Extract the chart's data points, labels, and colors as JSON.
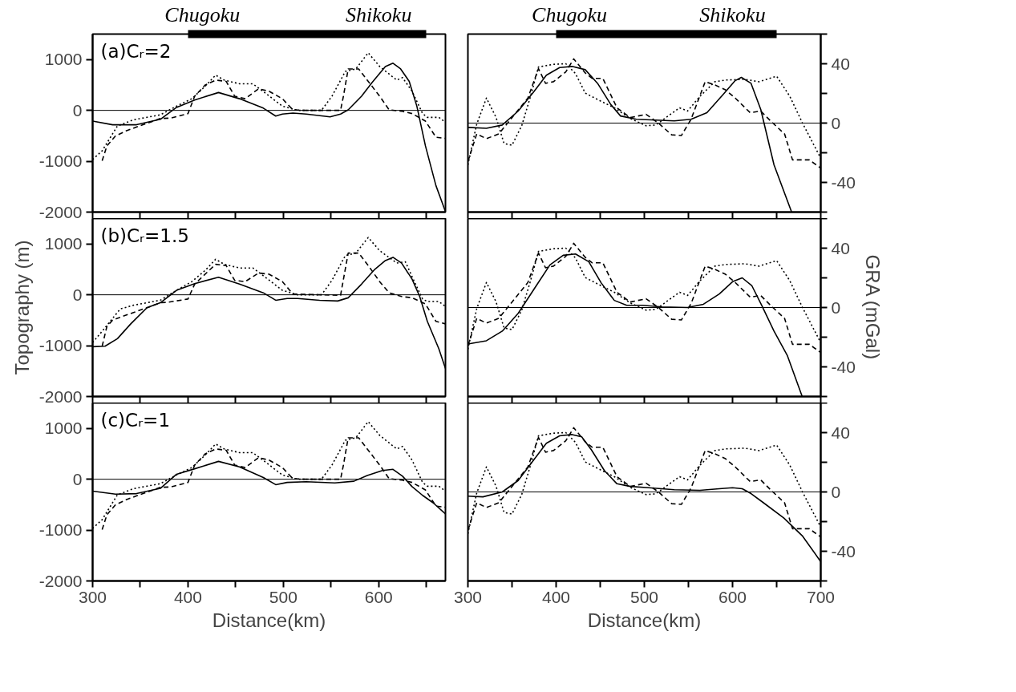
{
  "chart_data": [
    {
      "type": "line",
      "title": "(a)Cᵣ=2",
      "xlim": [
        300,
        670
      ],
      "ylim": [
        -2000,
        1500
      ],
      "xticks": [
        300,
        {
          "value": 350,
          "label": null
        },
        400,
        {
          "value": 450,
          "label": null
        },
        500,
        {
          "value": 550,
          "label": null
        },
        600,
        {
          "value": 650,
          "label": null
        }
      ],
      "yticks": [
        -2000,
        -1000,
        0,
        1000
      ],
      "tick_labels": "y",
      "grid": false,
      "ref_lines": [
        {
          "axis": "y",
          "value": 0,
          "color": "#000000"
        }
      ],
      "annotations": [
        "Chugoku",
        "Shikoku"
      ],
      "series": [
        {
          "color": "#000000",
          "line_style": "solid",
          "x": [
            300,
            321,
            346,
            371,
            388,
            407,
            432,
            454,
            479,
            492,
            499,
            510,
            524,
            549,
            560,
            568,
            582,
            593,
            607,
            615,
            623,
            632,
            640,
            649,
            660,
            670
          ],
          "values": [
            -210,
            -283,
            -283,
            -176,
            59,
            205,
            351,
            229,
            44,
            -112,
            -73,
            -54,
            -73,
            -127,
            -73,
            10,
            278,
            546,
            863,
            927,
            815,
            571,
            83,
            -698,
            -1478,
            -1990
          ]
        },
        {
          "color": "#000000",
          "line_style": "dashed",
          "x": [
            310,
            315,
            324,
            335,
            349,
            371,
            382,
            400,
            407,
            418,
            429,
            440,
            449,
            460,
            474,
            485,
            499,
            510,
            524,
            560,
            563,
            568,
            579,
            590,
            601,
            611,
            624,
            635,
            649,
            660,
            670
          ],
          "values": [
            -990,
            -698,
            -502,
            -405,
            -307,
            -161,
            -151,
            -63,
            278,
            498,
            595,
            571,
            278,
            229,
            424,
            376,
            229,
            10,
            0,
            0,
            278,
            815,
            815,
            546,
            278,
            10,
            -15,
            -63,
            -210,
            -527,
            -551
          ]
        },
        {
          "color": "#000000",
          "line_style": "dotted",
          "x": [
            300,
            310,
            326,
            343,
            371,
            388,
            404,
            418,
            429,
            438,
            454,
            468,
            482,
            499,
            515,
            540,
            551,
            565,
            576,
            589,
            601,
            619,
            625,
            635,
            646,
            651,
            663,
            670
          ],
          "values": [
            -966,
            -795,
            -307,
            -185,
            -88,
            83,
            229,
            473,
            693,
            595,
            522,
            522,
            327,
            83,
            0,
            0,
            278,
            766,
            815,
            1132,
            863,
            595,
            644,
            376,
            -63,
            -137,
            -137,
            -234
          ]
        }
      ]
    },
    {
      "type": "line",
      "xlim": [
        300,
        700
      ],
      "y2lim": [
        -60,
        60
      ],
      "xticks": [
        300,
        {
          "value": 350,
          "label": null
        },
        400,
        {
          "value": 450,
          "label": null
        },
        500,
        {
          "value": 550,
          "label": null
        },
        600,
        {
          "value": 650,
          "label": null
        },
        700
      ],
      "y2ticks": [
        {
          "value": -60,
          "label": null
        },
        -40,
        {
          "value": -20,
          "label": null
        },
        0,
        {
          "value": 20,
          "label": null
        },
        40,
        {
          "value": 60,
          "label": null
        }
      ],
      "tick_labels": "y",
      "grid": false,
      "ref_lines": [
        {
          "axis": "y2",
          "value": 0,
          "color": "#000000"
        }
      ],
      "annotations": [
        "Chugoku",
        "Shikoku"
      ],
      "series": [
        {
          "axis": "y2",
          "color": "#000000",
          "line_style": "solid",
          "x": [
            300,
            321,
            339,
            357,
            375,
            389,
            404,
            418,
            433,
            447,
            462,
            473,
            491,
            513,
            534,
            553,
            571,
            589,
            603,
            610,
            621,
            632,
            647,
            667
          ],
          "values": [
            -2.9,
            -3.5,
            -1.3,
            8.1,
            21.3,
            32.3,
            37.4,
            38.2,
            36.0,
            26.8,
            12.5,
            4.8,
            2.6,
            2.0,
            1.5,
            2.6,
            7.0,
            19.1,
            28.6,
            30.8,
            26.8,
            9.2,
            -28.1,
            -60
          ]
        },
        {
          "axis": "y2",
          "color": "#000000",
          "line_style": "dashed",
          "x": [
            300,
            310,
            321,
            335,
            350,
            368,
            380,
            388,
            397,
            411,
            420,
            433,
            441,
            453,
            469,
            484,
            502,
            516,
            531,
            542,
            553,
            569,
            580,
            592,
            603,
            620,
            632,
            643,
            659,
            668,
            687,
            700
          ],
          "values": [
            -25.9,
            -7.3,
            -10.5,
            -7.3,
            3.7,
            16.9,
            36.7,
            26.8,
            27.9,
            34.5,
            43.3,
            33.8,
            30.1,
            30.1,
            10.3,
            3.7,
            5.9,
            0,
            -7.9,
            -8.4,
            2.6,
            27.9,
            25.7,
            22.4,
            16.9,
            7.0,
            8.1,
            1.5,
            -7.3,
            -24.8,
            -24.8,
            -30.3
          ]
        },
        {
          "axis": "y2",
          "color": "#000000",
          "line_style": "dotted",
          "x": [
            300,
            310,
            321,
            332,
            341,
            350,
            361,
            371,
            380,
            397,
            411,
            422,
            433,
            451,
            466,
            484,
            502,
            513,
            527,
            540,
            549,
            563,
            580,
            592,
            614,
            630,
            650,
            665,
            679,
            700
          ],
          "values": [
            -28.1,
            -0.7,
            16.9,
            3.7,
            -13.8,
            -14.9,
            -1.8,
            18.0,
            37.8,
            39.6,
            40.0,
            33.4,
            20.2,
            14.7,
            10.3,
            3.1,
            -1.8,
            -1.3,
            4.8,
            10.3,
            8.1,
            18.0,
            27.9,
            29.0,
            29.5,
            27.9,
            31.6,
            18.0,
            0.4,
            -23.7
          ]
        }
      ]
    },
    {
      "type": "line",
      "title": "(b)Cᵣ=1.5",
      "ylabel": "Topography (m)",
      "xlim": [
        300,
        670
      ],
      "ylim": [
        -2000,
        1500
      ],
      "xticks": [
        300,
        {
          "value": 350,
          "label": null
        },
        400,
        {
          "value": 450,
          "label": null
        },
        500,
        {
          "value": 550,
          "label": null
        },
        600,
        {
          "value": 650,
          "label": null
        }
      ],
      "yticks": [
        -2000,
        -1000,
        0,
        1000
      ],
      "tick_labels": "y",
      "grid": false,
      "ref_lines": [
        {
          "axis": "y",
          "value": 0,
          "color": "#000000"
        }
      ],
      "series": [
        {
          "color": "#000000",
          "line_style": "solid",
          "x": [
            300,
            313,
            326,
            340,
            357,
            371,
            388,
            407,
            432,
            454,
            479,
            492,
            504,
            515,
            538,
            557,
            568,
            582,
            596,
            607,
            615,
            624,
            635,
            643,
            651,
            663,
            670
          ],
          "values": [
            -1020,
            -1010,
            -863,
            -571,
            -254,
            -156,
            88,
            220,
            346,
            210,
            39,
            -107,
            -73,
            -73,
            -107,
            -122,
            -59,
            210,
            502,
            673,
            737,
            624,
            307,
            -34,
            -522,
            -1059,
            -1449
          ]
        },
        {
          "color": "#000000",
          "line_style": "dashed",
          "x": [
            310,
            315,
            321,
            335,
            357,
            371,
            379,
            400,
            407,
            429,
            440,
            449,
            460,
            474,
            485,
            499,
            510,
            560,
            568,
            579,
            590,
            601,
            611,
            624,
            635,
            649,
            660,
            670
          ],
          "values": [
            -1010,
            -620,
            -498,
            -400,
            -254,
            -156,
            -146,
            -83,
            210,
            600,
            576,
            283,
            259,
            429,
            405,
            259,
            15,
            -10,
            820,
            820,
            551,
            259,
            39,
            -34,
            -59,
            -180,
            -522,
            -571
          ]
        },
        {
          "color": "#000000",
          "line_style": "dotted",
          "x": [
            300,
            310,
            329,
            343,
            371,
            388,
            404,
            418,
            429,
            438,
            454,
            468,
            482,
            499,
            515,
            540,
            551,
            565,
            576,
            589,
            601,
            619,
            628,
            635,
            646,
            651,
            663,
            670
          ],
          "values": [
            -937,
            -717,
            -278,
            -205,
            -107,
            88,
            259,
            478,
            698,
            600,
            527,
            527,
            332,
            88,
            0,
            0,
            283,
            771,
            820,
            1127,
            868,
            624,
            649,
            356,
            -83,
            -132,
            -132,
            -229
          ]
        }
      ]
    },
    {
      "type": "line",
      "y2label": "GRA (mGal)",
      "xlim": [
        300,
        700
      ],
      "y2lim": [
        -60,
        60
      ],
      "xticks": [
        300,
        {
          "value": 350,
          "label": null
        },
        400,
        {
          "value": 450,
          "label": null
        },
        500,
        {
          "value": 550,
          "label": null
        },
        600,
        {
          "value": 650,
          "label": null
        },
        700
      ],
      "y2ticks": [
        {
          "value": -60,
          "label": null
        },
        -40,
        {
          "value": -20,
          "label": null
        },
        0,
        {
          "value": 20,
          "label": null
        },
        40,
        {
          "value": 60,
          "label": null
        }
      ],
      "tick_labels": "y",
      "grid": false,
      "ref_lines": [
        {
          "axis": "y2",
          "value": 0,
          "color": "#000000"
        }
      ],
      "series": [
        {
          "axis": "y2",
          "color": "#000000",
          "line_style": "solid",
          "x": [
            300,
            321,
            339,
            357,
            375,
            393,
            408,
            422,
            437,
            451,
            466,
            480,
            498,
            520,
            549,
            567,
            585,
            600,
            611,
            622,
            633,
            647,
            662,
            679
          ],
          "values": [
            -24.6,
            -22.4,
            -15.9,
            -3.9,
            12.4,
            28.7,
            35.2,
            36.1,
            30.9,
            16.7,
            4.8,
            1.5,
            1.5,
            0.4,
            0,
            2.2,
            9.1,
            17.4,
            20.0,
            14.6,
            1.5,
            -15.9,
            -32.2,
            -60
          ]
        },
        {
          "axis": "y2",
          "color": "#000000",
          "line_style": "dashed",
          "x": [
            300,
            310,
            321,
            335,
            350,
            368,
            380,
            388,
            397,
            411,
            420,
            433,
            441,
            453,
            469,
            484,
            502,
            516,
            531,
            542,
            553,
            569,
            580,
            592,
            603,
            620,
            632,
            643,
            659,
            668,
            687,
            700
          ],
          "values": [
            -25.9,
            -7.3,
            -10.5,
            -7.3,
            3.7,
            16.9,
            36.7,
            26.8,
            27.9,
            34.5,
            43.3,
            33.8,
            30.1,
            30.1,
            10.3,
            3.7,
            5.9,
            0,
            -7.9,
            -8.4,
            2.6,
            27.9,
            25.7,
            22.4,
            16.9,
            7.0,
            8.1,
            1.5,
            -7.3,
            -24.8,
            -24.8,
            -30.3
          ]
        },
        {
          "axis": "y2",
          "color": "#000000",
          "line_style": "dotted",
          "x": [
            300,
            310,
            321,
            332,
            341,
            350,
            361,
            371,
            380,
            397,
            411,
            422,
            433,
            451,
            466,
            484,
            502,
            513,
            527,
            540,
            549,
            563,
            580,
            592,
            614,
            630,
            650,
            665,
            679,
            700
          ],
          "values": [
            -28.1,
            -0.7,
            16.9,
            3.7,
            -13.8,
            -14.9,
            -1.8,
            18.0,
            37.8,
            39.6,
            40.0,
            33.4,
            20.2,
            14.7,
            10.3,
            3.1,
            -1.8,
            -1.3,
            4.8,
            10.3,
            8.1,
            18.0,
            27.9,
            29.0,
            29.5,
            27.9,
            31.6,
            18.0,
            0.4,
            -23.7
          ]
        }
      ]
    },
    {
      "type": "line",
      "title": "(c)Cᵣ=1",
      "xlabel": "Distance(km)",
      "xlim": [
        300,
        670
      ],
      "ylim": [
        -2000,
        1500
      ],
      "xticks": [
        300,
        {
          "value": 350,
          "label": null
        },
        400,
        {
          "value": 450,
          "label": null
        },
        500,
        {
          "value": 550,
          "label": null
        },
        600,
        {
          "value": 650,
          "label": null
        }
      ],
      "yticks": [
        -2000,
        -1000,
        0,
        1000
      ],
      "grid": false,
      "ref_lines": [
        {
          "axis": "y",
          "value": 0,
          "color": "#000000"
        }
      ],
      "series": [
        {
          "color": "#000000",
          "line_style": "solid",
          "x": [
            300,
            324,
            346,
            371,
            388,
            407,
            432,
            454,
            479,
            492,
            504,
            524,
            554,
            574,
            588,
            604,
            615,
            625,
            635,
            646,
            657,
            670
          ],
          "values": [
            -234,
            -293,
            -283,
            -180,
            98,
            205,
            351,
            244,
            34,
            -107,
            -63,
            -49,
            -73,
            -39,
            73,
            171,
            195,
            59,
            -146,
            -317,
            -463,
            -683
          ]
        },
        {
          "color": "#000000",
          "line_style": "dashed",
          "x": [
            310,
            315,
            324,
            335,
            349,
            371,
            382,
            400,
            407,
            418,
            429,
            440,
            449,
            460,
            474,
            485,
            499,
            510,
            524,
            560,
            563,
            568,
            579,
            590,
            601,
            611,
            624,
            635,
            649,
            660,
            670
          ],
          "values": [
            -990,
            -698,
            -502,
            -405,
            -307,
            -161,
            -151,
            -63,
            278,
            498,
            595,
            571,
            278,
            229,
            424,
            376,
            229,
            10,
            0,
            0,
            278,
            815,
            815,
            546,
            278,
            10,
            -15,
            -63,
            -210,
            -527,
            -551
          ]
        },
        {
          "color": "#000000",
          "line_style": "dotted",
          "x": [
            300,
            310,
            326,
            343,
            371,
            388,
            404,
            418,
            429,
            438,
            454,
            468,
            482,
            499,
            515,
            540,
            551,
            565,
            576,
            589,
            601,
            619,
            625,
            635,
            646,
            651,
            663,
            670
          ],
          "values": [
            -966,
            -795,
            -307,
            -185,
            -88,
            83,
            229,
            473,
            693,
            595,
            522,
            522,
            327,
            83,
            0,
            0,
            278,
            766,
            815,
            1132,
            863,
            595,
            644,
            376,
            -63,
            -137,
            -137,
            -234
          ]
        }
      ]
    },
    {
      "type": "line",
      "xlabel": "Distance(km)",
      "xlim": [
        300,
        700
      ],
      "y2lim": [
        -60,
        60
      ],
      "xticks": [
        300,
        {
          "value": 350,
          "label": null
        },
        400,
        {
          "value": 450,
          "label": null
        },
        500,
        {
          "value": 550,
          "label": null
        },
        600,
        {
          "value": 650,
          "label": null
        },
        700
      ],
      "y2ticks": [
        {
          "value": -60,
          "label": null
        },
        -40,
        {
          "value": -20,
          "label": null
        },
        0,
        {
          "value": 20,
          "label": null
        },
        40,
        {
          "value": 60,
          "label": null
        }
      ],
      "grid": false,
      "ref_lines": [
        {
          "axis": "y2",
          "value": 0,
          "color": "#000000"
        }
      ],
      "series": [
        {
          "axis": "y2",
          "color": "#000000",
          "line_style": "solid",
          "x": [
            300,
            317,
            339,
            357,
            375,
            389,
            404,
            418,
            429,
            440,
            455,
            469,
            484,
            505,
            534,
            563,
            585,
            600,
            611,
            621,
            636,
            658,
            679,
            700
          ],
          "values": [
            -2.8,
            -3.3,
            0,
            7.7,
            21.9,
            32.8,
            37.8,
            38.7,
            37.2,
            28.4,
            14.2,
            5.5,
            3.7,
            2.8,
            1.5,
            1.1,
            2.2,
            2.8,
            2.2,
            -1.1,
            -7.7,
            -17.5,
            -29.5,
            -47.0
          ]
        },
        {
          "axis": "y2",
          "color": "#000000",
          "line_style": "dashed",
          "x": [
            300,
            310,
            321,
            335,
            350,
            368,
            380,
            388,
            397,
            411,
            420,
            433,
            441,
            453,
            469,
            484,
            502,
            516,
            531,
            542,
            553,
            569,
            580,
            592,
            603,
            620,
            632,
            643,
            659,
            668,
            687,
            700
          ],
          "values": [
            -25.9,
            -7.3,
            -10.5,
            -7.3,
            3.7,
            16.9,
            36.7,
            26.8,
            27.9,
            34.5,
            43.3,
            33.8,
            30.1,
            30.1,
            10.3,
            3.7,
            5.9,
            0,
            -7.9,
            -8.4,
            2.6,
            27.9,
            25.7,
            22.4,
            16.9,
            7.0,
            8.1,
            1.5,
            -7.3,
            -24.8,
            -24.8,
            -30.3
          ]
        },
        {
          "axis": "y2",
          "color": "#000000",
          "line_style": "dotted",
          "x": [
            300,
            310,
            321,
            332,
            341,
            350,
            361,
            371,
            380,
            397,
            411,
            422,
            433,
            451,
            466,
            484,
            502,
            513,
            527,
            540,
            549,
            563,
            580,
            592,
            614,
            630,
            650,
            665,
            679,
            700
          ],
          "values": [
            -28.1,
            -0.7,
            16.9,
            3.7,
            -13.8,
            -14.9,
            -1.8,
            18.0,
            37.8,
            39.6,
            40.0,
            33.4,
            20.2,
            14.7,
            10.3,
            3.1,
            -1.8,
            -1.3,
            4.8,
            10.3,
            8.1,
            18.0,
            27.9,
            29.0,
            29.5,
            27.9,
            31.6,
            18.0,
            0.4,
            -23.7
          ]
        }
      ]
    }
  ]
}
